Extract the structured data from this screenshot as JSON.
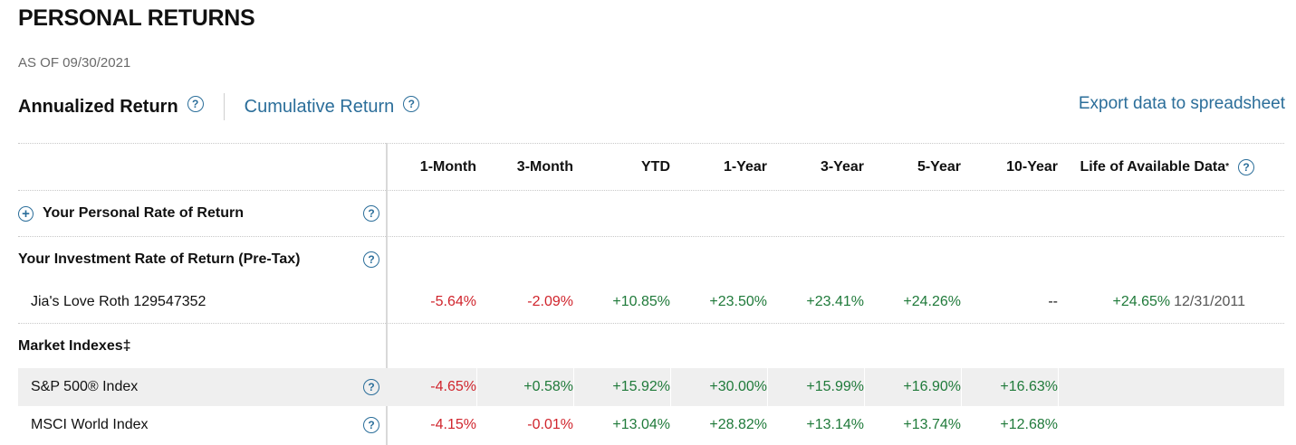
{
  "page": {
    "title": "PERSONAL RETURNS",
    "as_of": "AS OF 09/30/2021"
  },
  "tabs": [
    {
      "label": "Annualized Return",
      "active": true,
      "help_icon": "question-circle-icon"
    },
    {
      "label": "Cumulative Return",
      "active": false,
      "help_icon": "question-circle-icon"
    }
  ],
  "export_label": "Export data to spreadsheet",
  "table": {
    "columns": [
      "1-Month",
      "3-Month",
      "YTD",
      "1-Year",
      "3-Year",
      "5-Year",
      "10-Year",
      "Life of Available Data"
    ],
    "life_footnote": "*",
    "personal_rate_label": "Your Personal Rate of Return",
    "investment_rate_label": "Your Investment Rate of Return (Pre-Tax)",
    "accounts": [
      {
        "name": "Jia's Love Roth 129547352",
        "values": [
          "-5.64%",
          "-2.09%",
          "+10.85%",
          "+23.50%",
          "+23.41%",
          "+24.26%",
          "--",
          "+24.65%"
        ],
        "since": "12/31/2011"
      }
    ],
    "market_indexes_label": "Market Indexes",
    "market_indexes_footnote": "‡",
    "indexes": [
      {
        "name": "S&P 500® Index",
        "values": [
          "-4.65%",
          "+0.58%",
          "+15.92%",
          "+30.00%",
          "+15.99%",
          "+16.90%",
          "+16.63%",
          ""
        ]
      },
      {
        "name": "MSCI World Index",
        "values": [
          "-4.15%",
          "-0.01%",
          "+13.04%",
          "+28.82%",
          "+13.14%",
          "+13.74%",
          "+12.68%",
          ""
        ]
      }
    ]
  },
  "colors": {
    "negative": "#d0242c",
    "positive": "#1f7a3a",
    "link": "#2b6e9a"
  }
}
